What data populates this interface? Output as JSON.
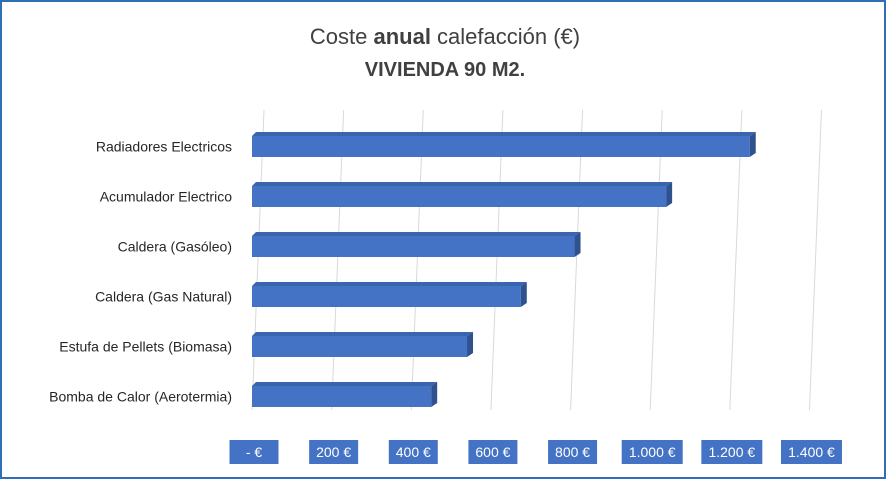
{
  "chart_data": {
    "type": "bar",
    "orientation": "horizontal",
    "title_parts": [
      {
        "text": "Coste ",
        "bold": false
      },
      {
        "text": "anual",
        "bold": true
      },
      {
        "text": " calefacción (€)",
        "bold": false
      }
    ],
    "subtitle": "VIVIENDA 90 M2.",
    "categories": [
      "Radiadores Electricos",
      "Acumulador Electrico",
      "Caldera (Gasóleo)",
      "Caldera (Gas Natural)",
      "Estufa de Pellets (Biomasa)",
      "Bomba de Calor (Aerotermia)"
    ],
    "values": [
      1250,
      1040,
      810,
      675,
      540,
      450
    ],
    "xlim": [
      0,
      1400
    ],
    "xticks": [
      0,
      200,
      400,
      600,
      800,
      1000,
      1200,
      1400
    ],
    "xtick_labels": [
      "-   €",
      "200 €",
      "400 €",
      "600 €",
      "800 €",
      "1.000 €",
      "1.200 €",
      "1.400 €"
    ],
    "grid": true,
    "colors": {
      "bar_front": "#4472c4",
      "bar_top": "#3a64ae",
      "bar_side": "#2f528f",
      "tick_box": "#4472c4",
      "frame": "#2e6fb7",
      "grid": "#d9d9d9"
    }
  }
}
